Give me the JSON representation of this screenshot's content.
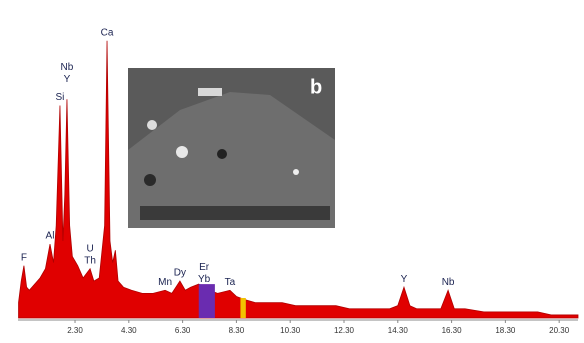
{
  "chart_data": {
    "type": "area",
    "color": "#e00000",
    "x": [
      0.2,
      0.3,
      0.4,
      0.5,
      0.6,
      0.8,
      1.0,
      1.2,
      1.37,
      1.5,
      1.6,
      1.74,
      1.85,
      1.92,
      2.0,
      2.1,
      2.2,
      2.4,
      2.6,
      2.86,
      3.0,
      3.2,
      3.4,
      3.49,
      3.6,
      3.7,
      3.8,
      3.9,
      4.1,
      4.4,
      4.8,
      5.2,
      5.65,
      5.9,
      6.2,
      6.4,
      6.6,
      6.9,
      7.1,
      7.3,
      7.6,
      8.06,
      8.3,
      8.6,
      9.0,
      9.5,
      10.0,
      10.5,
      11.0,
      11.5,
      12.0,
      12.5,
      13.0,
      13.5,
      14.0,
      14.3,
      14.53,
      14.75,
      15.0,
      15.5,
      15.9,
      16.17,
      16.4,
      16.8,
      17.5,
      18.0,
      18.5,
      19.0,
      19.5,
      20.0,
      20.5,
      21.0
    ],
    "values": [
      5,
      12,
      17,
      10,
      9,
      11,
      13,
      16,
      24,
      18,
      30,
      69,
      25,
      40,
      71,
      30,
      20,
      17,
      13,
      16,
      12,
      13,
      30,
      90,
      25,
      18,
      22,
      12,
      10,
      9,
      8,
      8,
      9,
      8,
      12,
      9,
      10,
      11,
      10,
      9,
      8,
      9,
      7,
      6,
      5,
      5,
      5,
      4,
      4,
      4,
      4,
      3,
      3,
      3,
      3,
      4,
      10,
      4,
      3,
      3,
      3,
      9,
      3,
      3,
      2,
      2,
      2,
      2,
      2,
      1,
      1,
      1
    ],
    "xlim": [
      0.18,
      21.0
    ],
    "ylim": [
      0,
      100
    ],
    "xticks": [
      {
        "value": 2.3,
        "label": "2.30"
      },
      {
        "value": 4.3,
        "label": "4.30"
      },
      {
        "value": 6.3,
        "label": "6.30"
      },
      {
        "value": 8.3,
        "label": "8.30"
      },
      {
        "value": 10.3,
        "label": "10.30"
      },
      {
        "value": 12.3,
        "label": "12.30"
      },
      {
        "value": 14.3,
        "label": "14.30"
      },
      {
        "value": 16.3,
        "label": "16.30"
      },
      {
        "value": 18.3,
        "label": "18.30"
      },
      {
        "value": 20.3,
        "label": "20.30"
      }
    ],
    "regions": [
      {
        "xlim": [
          6.9,
          7.5
        ],
        "color": "#6a2cb0"
      },
      {
        "xlim": [
          8.45,
          8.65
        ],
        "color": "#f2c200"
      }
    ],
    "annotations": [
      {
        "label": "F",
        "x": 0.4
      },
      {
        "label": "Al",
        "x": 1.37
      },
      {
        "label": "Si",
        "x": 1.74
      },
      {
        "label": "Y",
        "x": 2.0
      },
      {
        "label": "Nb",
        "x": 2.0
      },
      {
        "label": "Th",
        "x": 2.86
      },
      {
        "label": "U",
        "x": 2.86
      },
      {
        "label": "Ca",
        "x": 3.49
      },
      {
        "label": "Mn",
        "x": 5.65
      },
      {
        "label": "Dy",
        "x": 6.2
      },
      {
        "label": "Yb",
        "x": 7.1
      },
      {
        "label": "Er",
        "x": 7.1
      },
      {
        "label": "Ta",
        "x": 8.06
      },
      {
        "label": "Y",
        "x": 14.53
      },
      {
        "label": "Nb",
        "x": 16.17
      }
    ],
    "inset_label": "b"
  }
}
